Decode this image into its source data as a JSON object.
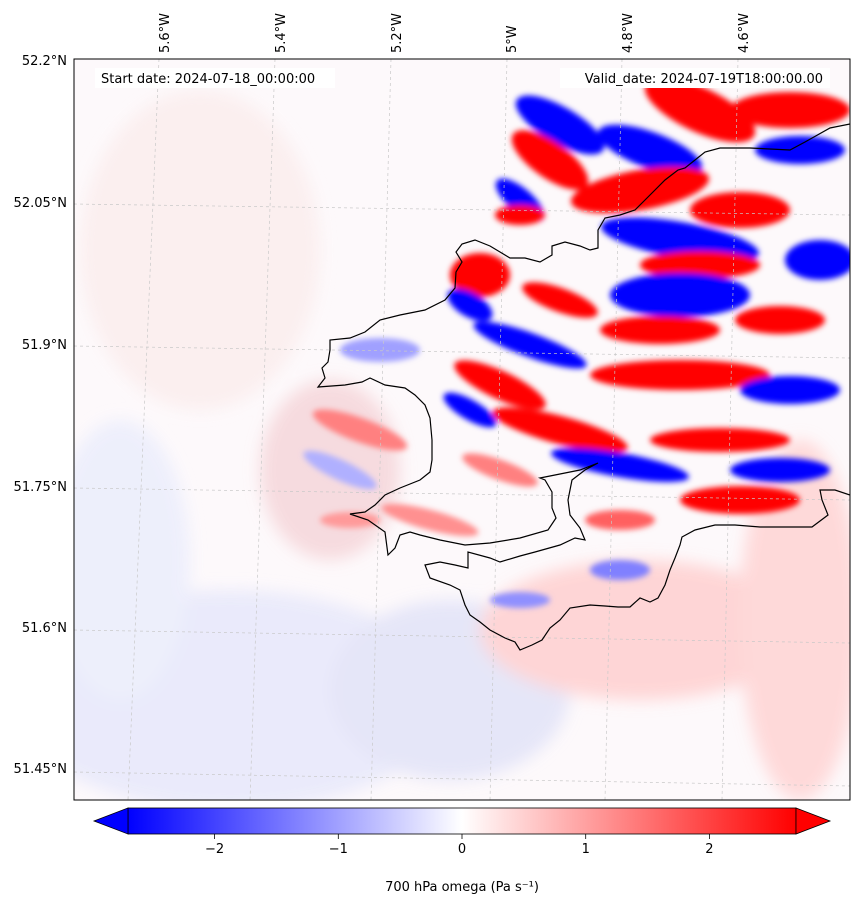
{
  "header": {
    "start_date": "Start date: 2024-07-18_00:00:00",
    "valid_date": "Valid_date: 2024-07-19T18:00:00.00"
  },
  "axes": {
    "lon_labels": [
      "5.6°W",
      "5.4°W",
      "5.2°W",
      "5°W",
      "4.8°W",
      "4.6°W"
    ],
    "lat_labels": [
      "52.2°N",
      "52.05°N",
      "51.9°N",
      "51.75°N",
      "51.6°N",
      "51.45°N"
    ]
  },
  "colorbar": {
    "label": "700 hPa omega (Pa s⁻¹)",
    "ticks": [
      "−2",
      "−1",
      "0",
      "1",
      "2"
    ],
    "tick_values": [
      -2,
      -1,
      0,
      1,
      2
    ],
    "range": [
      -2.7,
      2.7
    ],
    "colormap": "bwr",
    "colors": {
      "negative": "#0000ff",
      "zero": "#ffffff",
      "positive": "#ff0000"
    }
  },
  "map": {
    "variable": "700 hPa omega",
    "coastline_color": "#000000",
    "gridline_color": "#c8c8c8"
  }
}
